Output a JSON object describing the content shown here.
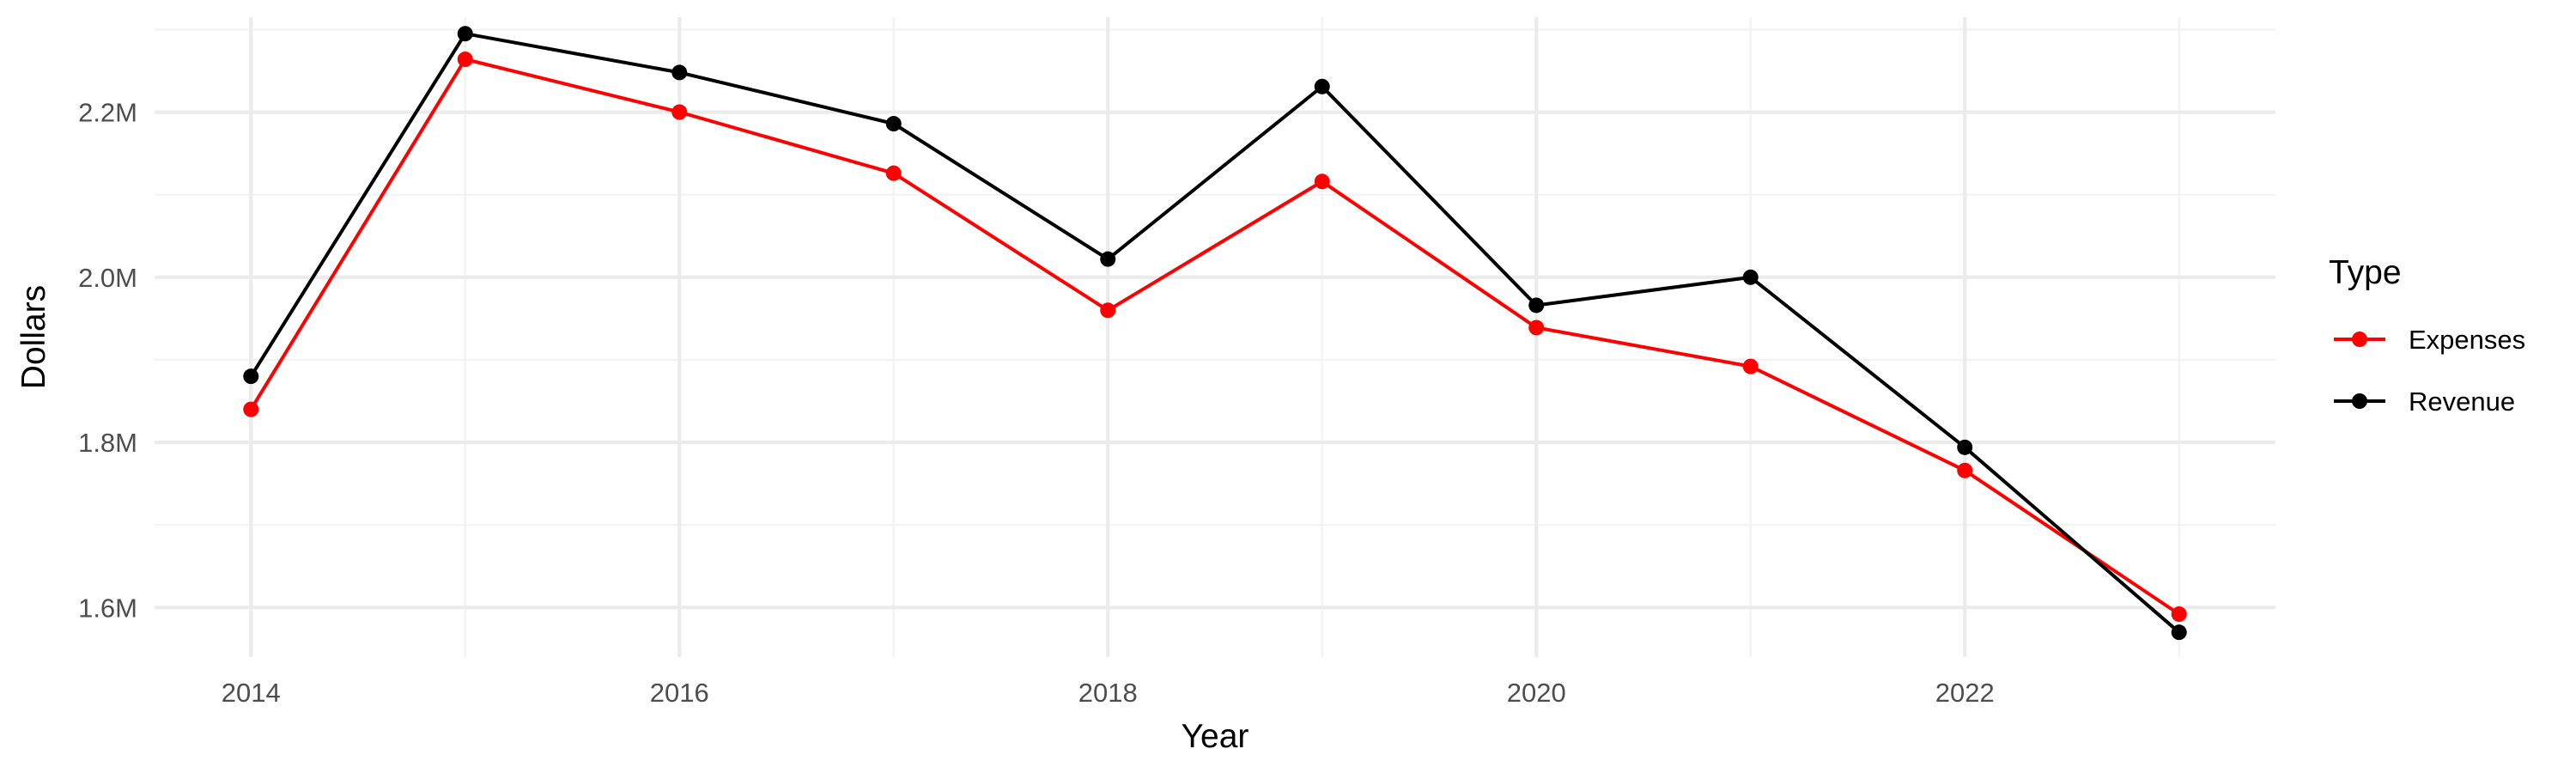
{
  "chart_data": {
    "type": "line",
    "title": "",
    "xlabel": "Year",
    "ylabel": "Dollars",
    "x": [
      2014,
      2015,
      2016,
      2017,
      2018,
      2019,
      2020,
      2021,
      2022,
      2023
    ],
    "x_ticks": [
      2014,
      2016,
      2018,
      2020,
      2022
    ],
    "x_tick_labels": [
      "2014",
      "2016",
      "2018",
      "2020",
      "2022"
    ],
    "xlim": [
      2013.55,
      2023.45
    ],
    "ylim": [
      1.54,
      2.315
    ],
    "y_ticks": [
      1.6,
      1.8,
      2.0,
      2.2
    ],
    "y_tick_labels": [
      "1.6M",
      "1.8M",
      "2.0M",
      "2.2M"
    ],
    "y_unit": "millions of dollars",
    "grid": true,
    "legend": {
      "title": "Type",
      "position": "right"
    },
    "series": [
      {
        "name": "Expenses",
        "color": "#ff0000",
        "values": [
          1.84,
          2.264,
          2.2,
          2.126,
          1.96,
          2.116,
          1.939,
          1.892,
          1.766,
          1.592
        ]
      },
      {
        "name": "Revenue",
        "color": "#000000",
        "values": [
          1.88,
          2.295,
          2.248,
          2.186,
          2.022,
          2.231,
          1.966,
          2.0,
          1.794,
          1.57
        ]
      }
    ]
  }
}
